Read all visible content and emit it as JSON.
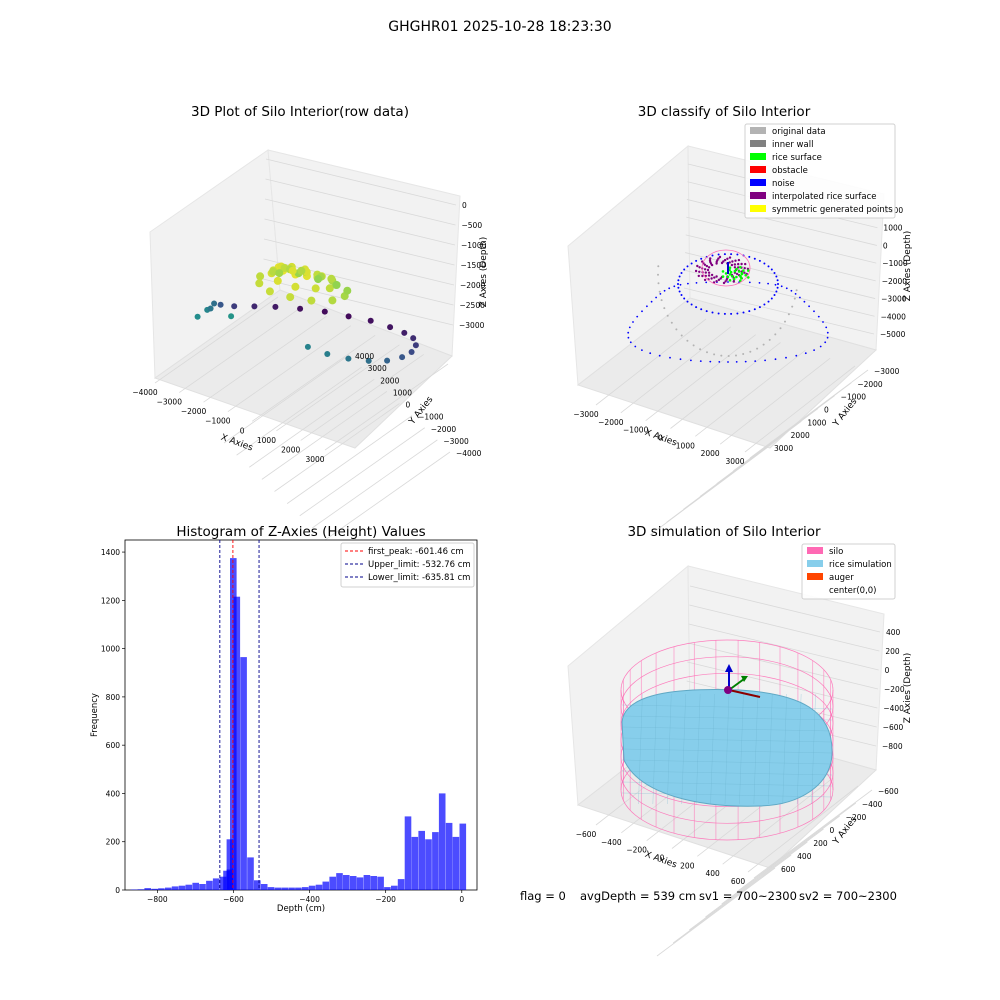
{
  "figure": {
    "suptitle": "GHGHR01 2025-10-28 18:23:30",
    "status_line": {
      "flag": "flag = 0",
      "avg_depth": "avgDepth = 539 cm",
      "sv1": "sv1 = 700~2300",
      "sv2": "sv2 = 700~2300"
    }
  },
  "chart_data": [
    {
      "type": "scatter",
      "projection": "3d",
      "title": "3D Plot of Silo Interior(row data)",
      "xlabel": "X Axies",
      "ylabel": "Y Axies",
      "zlabel": "Z Axies (Depth)",
      "xticks": [
        "−4000",
        "−3000",
        "−2000",
        "−1000",
        "0",
        "1000",
        "2000",
        "3000"
      ],
      "yticks": [
        "4000",
        "3000",
        "2000",
        "1000",
        "0",
        "−1000",
        "−2000",
        "−3000",
        "−4000"
      ],
      "zticks": [
        "0",
        "−500",
        "−1000",
        "−1500",
        "−2000",
        "−2500",
        "−3000"
      ],
      "xlim": [
        -4000,
        3500
      ],
      "ylim": [
        -4000,
        4000
      ],
      "zlim": [
        -3300,
        0
      ],
      "colormap": "viridis",
      "series": [
        {
          "role": "outer-spiral",
          "points": [
            [
              -3300,
              200,
              -2100
            ],
            [
              -3450,
              -400,
              -2400
            ],
            [
              -3400,
              -1100,
              -2700
            ],
            [
              -3100,
              -1800,
              -2900
            ],
            [
              -2700,
              -2400,
              -3050
            ],
            [
              -2100,
              -2900,
              -3150
            ],
            [
              -1400,
              -3250,
              -3200
            ],
            [
              -600,
              -3400,
              -3200
            ],
            [
              200,
              -3450,
              -3150
            ],
            [
              1000,
              -3350,
              -3100
            ],
            [
              1700,
              -3100,
              -3000
            ],
            [
              2300,
              -2700,
              -2850
            ],
            [
              2800,
              -2100,
              -2700
            ],
            [
              3100,
              -1400,
              -2550
            ],
            [
              3200,
              -700,
              -2400
            ],
            [
              3100,
              0,
              -2250
            ],
            [
              2800,
              600,
              -2100
            ],
            [
              2300,
              1000,
              -2000
            ],
            [
              1700,
              1300,
              -1900
            ],
            [
              1000,
              1350,
              -1850
            ],
            [
              -2900,
              1200,
              -1800
            ],
            [
              -3100,
              700,
              -2000
            ],
            [
              -2800,
              1900,
              -1700
            ],
            [
              -1800,
              1500,
              -1600
            ]
          ]
        },
        {
          "role": "surface-cluster",
          "points": [
            [
              -600,
              600,
              -300
            ],
            [
              -300,
              800,
              -250
            ],
            [
              100,
              700,
              -300
            ],
            [
              400,
              500,
              -350
            ],
            [
              600,
              200,
              -450
            ],
            [
              500,
              -200,
              -600
            ],
            [
              200,
              -400,
              -700
            ],
            [
              -200,
              -300,
              -650
            ],
            [
              -500,
              0,
              -500
            ],
            [
              -700,
              300,
              -420
            ],
            [
              -900,
              -200,
              -700
            ],
            [
              -1000,
              300,
              -600
            ],
            [
              -800,
              700,
              -480
            ],
            [
              -300,
              1100,
              -420
            ],
            [
              300,
              1000,
              -480
            ],
            [
              800,
              600,
              -560
            ],
            [
              1000,
              100,
              -700
            ],
            [
              900,
              -400,
              -820
            ],
            [
              500,
              -800,
              -950
            ],
            [
              0,
              -900,
              -1000
            ],
            [
              -500,
              -800,
              -950
            ],
            [
              -900,
              -500,
              -850
            ],
            [
              -1200,
              0,
              -800
            ],
            [
              -1300,
              600,
              -720
            ],
            [
              -1000,
              1100,
              -650
            ],
            [
              -400,
              1400,
              -620
            ],
            [
              300,
              1300,
              -650
            ],
            [
              900,
              1000,
              -720
            ],
            [
              1300,
              400,
              -850
            ],
            [
              1300,
              -300,
              -1000
            ],
            [
              1000,
              -900,
              -1150
            ],
            [
              400,
              -1200,
              -1250
            ],
            [
              -300,
              -1200,
              -1250
            ],
            [
              -900,
              -1000,
              -1150
            ],
            [
              -1300,
              -500,
              -1050
            ],
            [
              0,
              0,
              -450
            ],
            [
              200,
              200,
              -400
            ],
            [
              -200,
              400,
              -380
            ],
            [
              600,
              -600,
              -800
            ],
            [
              -600,
              -700,
              -900
            ]
          ]
        }
      ]
    },
    {
      "type": "scatter",
      "projection": "3d",
      "title": "3D classify of Silo Interior",
      "xlabel": "X Axies",
      "ylabel": "Y Axies",
      "zlabel": "Z Axies (Depth)",
      "xticks": [
        "−3000",
        "−2000",
        "−1000",
        "0",
        "1000",
        "2000",
        "3000"
      ],
      "yticks": [
        "3000",
        "2000",
        "1000",
        "0",
        "−1000",
        "−2000",
        "−3000"
      ],
      "zticks": [
        "2000",
        "1000",
        "0",
        "−1000",
        "−2000",
        "−3000",
        "−4000",
        "−5000"
      ],
      "legend": {
        "placement": "top-right",
        "entries": [
          {
            "label": "original data",
            "color": "#b3b3b3"
          },
          {
            "label": "inner wall",
            "color": "#808080"
          },
          {
            "label": "rice surface",
            "color": "#00ff00"
          },
          {
            "label": "obstacle",
            "color": "#ff0000"
          },
          {
            "label": "noise",
            "color": "#0000ff"
          },
          {
            "label": "interpolated rice surface",
            "color": "#800080"
          },
          {
            "label": "symmetric generated points",
            "color": "#ffff00"
          }
        ]
      }
    },
    {
      "type": "bar",
      "title": "Histogram of Z-Axies (Height) Values",
      "xlabel": "Depth (cm)",
      "ylabel": "Frequency",
      "xlim": [
        -885,
        40
      ],
      "ylim": [
        0,
        1450
      ],
      "xticks": [
        -800,
        -600,
        -400,
        -200,
        0
      ],
      "yticks": [
        0,
        200,
        400,
        600,
        800,
        1000,
        1200,
        1400
      ],
      "bin_width": 18,
      "bar_color": "#0000ff",
      "bins": [
        [
          -870,
          2
        ],
        [
          -852,
          3
        ],
        [
          -834,
          8
        ],
        [
          -816,
          5
        ],
        [
          -798,
          7
        ],
        [
          -780,
          10
        ],
        [
          -762,
          15
        ],
        [
          -744,
          18
        ],
        [
          -726,
          22
        ],
        [
          -708,
          30
        ],
        [
          -690,
          25
        ],
        [
          -672,
          38
        ],
        [
          -654,
          48
        ],
        [
          -636,
          55
        ],
        [
          -618,
          85
        ],
        [
          -627,
          80
        ],
        [
          -618,
          210
        ],
        [
          -609,
          1375
        ],
        [
          -600,
          1215
        ],
        [
          -582,
          965
        ],
        [
          -564,
          135
        ],
        [
          -546,
          40
        ],
        [
          -528,
          25
        ],
        [
          -510,
          12
        ],
        [
          -492,
          10
        ],
        [
          -474,
          10
        ],
        [
          -456,
          10
        ],
        [
          -438,
          10
        ],
        [
          -420,
          12
        ],
        [
          -402,
          18
        ],
        [
          -384,
          22
        ],
        [
          -366,
          35
        ],
        [
          -348,
          55
        ],
        [
          -330,
          70
        ],
        [
          -312,
          62
        ],
        [
          -294,
          58
        ],
        [
          -276,
          52
        ],
        [
          -258,
          62
        ],
        [
          -240,
          58
        ],
        [
          -222,
          55
        ],
        [
          -204,
          12
        ],
        [
          -186,
          18
        ],
        [
          -168,
          45
        ],
        [
          -150,
          305
        ],
        [
          -132,
          220
        ],
        [
          -114,
          245
        ],
        [
          -96,
          210
        ],
        [
          -78,
          240
        ],
        [
          -60,
          400
        ],
        [
          -42,
          278
        ],
        [
          -24,
          220
        ],
        [
          -6,
          275
        ]
      ],
      "annotations": [
        {
          "label": "first_peak: -601.46 cm",
          "x": -601.46,
          "color": "#ff0000"
        },
        {
          "label": "Upper_limit: -532.76 cm",
          "x": -532.76,
          "color": "#00008b"
        },
        {
          "label": "Lower_limit: -635.81 cm",
          "x": -635.81,
          "color": "#00008b"
        }
      ],
      "legend": {
        "placement": "top-right"
      }
    },
    {
      "type": "surface",
      "projection": "3d",
      "title": "3D simulation of Silo Interior",
      "xlabel": "X Axies",
      "ylabel": "Y Axies",
      "zlabel": "Z Axies (Depth)",
      "xticks": [
        "−600",
        "−400",
        "−200",
        "0",
        "200",
        "400",
        "600"
      ],
      "yticks": [
        "600",
        "400",
        "200",
        "0",
        "−200",
        "−400",
        "−600"
      ],
      "zticks": [
        "400",
        "200",
        "0",
        "−200",
        "−400",
        "−600",
        "−800"
      ],
      "legend": {
        "placement": "top-right",
        "entries": [
          {
            "label": "silo",
            "color": "#ff69b4"
          },
          {
            "label": "rice simulation",
            "color": "#87ceeb"
          },
          {
            "label": "auger",
            "color": "#ff4500"
          },
          {
            "label": "center(0,0)",
            "color": ""
          }
        ]
      }
    }
  ]
}
